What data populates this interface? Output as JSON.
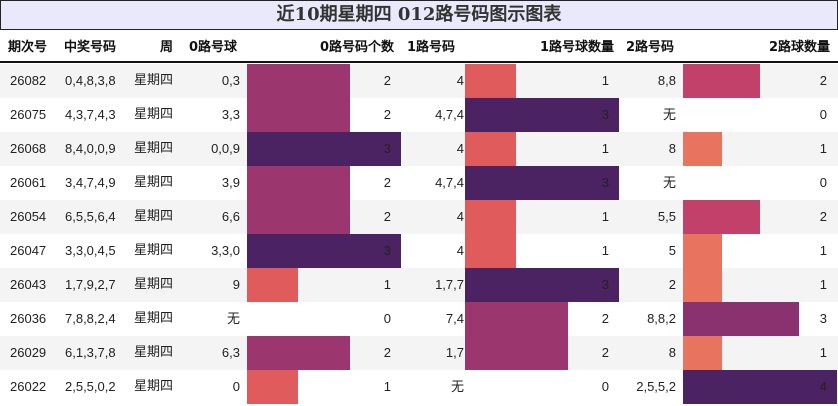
{
  "title": "近10期星期四 012路号码图示图表",
  "headers": {
    "issue": "期次号",
    "numbers": "中奖号码",
    "weekday": "周",
    "road0_balls": "0路号球",
    "road0_count": "0路号码个数",
    "road1_balls": "1路号码",
    "road1_count": "1路号球数量",
    "road2_balls": "2路号码",
    "road2_count": "2路球数量"
  },
  "colors": {
    "title_bg": "#e9e9fb",
    "road01_scale": [
      "#ffffff",
      "#e05c5c",
      "#9b366e",
      "#4b2362"
    ],
    "road2_scale": [
      "#ffffff",
      "#e8735f",
      "#c2416a",
      "#8a3270",
      "#4b2362"
    ]
  },
  "rows": [
    {
      "issue": "26082",
      "numbers": "0,4,8,3,8",
      "weekday": "星期四",
      "r0": "0,3",
      "c0": 2,
      "r1": "4",
      "c1": 1,
      "r2": "8,8",
      "c2": 2
    },
    {
      "issue": "26075",
      "numbers": "4,3,7,4,3",
      "weekday": "星期四",
      "r0": "3,3",
      "c0": 2,
      "r1": "4,7,4",
      "c1": 3,
      "r2": "无",
      "c2": 0
    },
    {
      "issue": "26068",
      "numbers": "8,4,0,0,9",
      "weekday": "星期四",
      "r0": "0,0,9",
      "c0": 3,
      "r1": "4",
      "c1": 1,
      "r2": "8",
      "c2": 1
    },
    {
      "issue": "26061",
      "numbers": "3,4,7,4,9",
      "weekday": "星期四",
      "r0": "3,9",
      "c0": 2,
      "r1": "4,7,4",
      "c1": 3,
      "r2": "无",
      "c2": 0
    },
    {
      "issue": "26054",
      "numbers": "6,5,5,6,4",
      "weekday": "星期四",
      "r0": "6,6",
      "c0": 2,
      "r1": "4",
      "c1": 1,
      "r2": "5,5",
      "c2": 2
    },
    {
      "issue": "26047",
      "numbers": "3,3,0,4,5",
      "weekday": "星期四",
      "r0": "3,3,0",
      "c0": 3,
      "r1": "4",
      "c1": 1,
      "r2": "5",
      "c2": 1
    },
    {
      "issue": "26043",
      "numbers": "1,7,9,2,7",
      "weekday": "星期四",
      "r0": "9",
      "c0": 1,
      "r1": "1,7,7",
      "c1": 3,
      "r2": "2",
      "c2": 1
    },
    {
      "issue": "26036",
      "numbers": "7,8,8,2,4",
      "weekday": "星期四",
      "r0": "无",
      "c0": 0,
      "r1": "7,4",
      "c1": 2,
      "r2": "8,8,2",
      "c2": 3
    },
    {
      "issue": "26029",
      "numbers": "6,1,3,7,8",
      "weekday": "星期四",
      "r0": "6,3",
      "c0": 2,
      "r1": "1,7",
      "c1": 2,
      "r2": "8",
      "c2": 1
    },
    {
      "issue": "26022",
      "numbers": "2,5,5,0,2",
      "weekday": "星期四",
      "r0": "0",
      "c0": 1,
      "r1": "无",
      "c1": 0,
      "r2": "2,5,5,2",
      "c2": 4
    }
  ],
  "chart_data": {
    "type": "table",
    "title": "近10期星期四 012路号码图示图表",
    "columns": [
      "期次号",
      "中奖号码",
      "周",
      "0路号球",
      "0路号码个数",
      "1路号码",
      "1路号球数量",
      "2路号码",
      "2路球数量"
    ],
    "categories": [
      "26082",
      "26075",
      "26068",
      "26061",
      "26054",
      "26047",
      "26043",
      "26036",
      "26029",
      "26022"
    ],
    "series": [
      {
        "name": "0路号码个数",
        "values": [
          2,
          2,
          3,
          2,
          2,
          3,
          1,
          0,
          2,
          1
        ]
      },
      {
        "name": "1路号球数量",
        "values": [
          1,
          3,
          1,
          3,
          1,
          1,
          3,
          2,
          2,
          0
        ]
      },
      {
        "name": "2路球数量",
        "values": [
          2,
          0,
          1,
          0,
          2,
          1,
          1,
          3,
          1,
          4
        ]
      }
    ],
    "bar_ranges": {
      "0路号码个数": [
        0,
        3
      ],
      "1路号球数量": [
        0,
        3
      ],
      "2路球数量": [
        0,
        4
      ]
    }
  }
}
